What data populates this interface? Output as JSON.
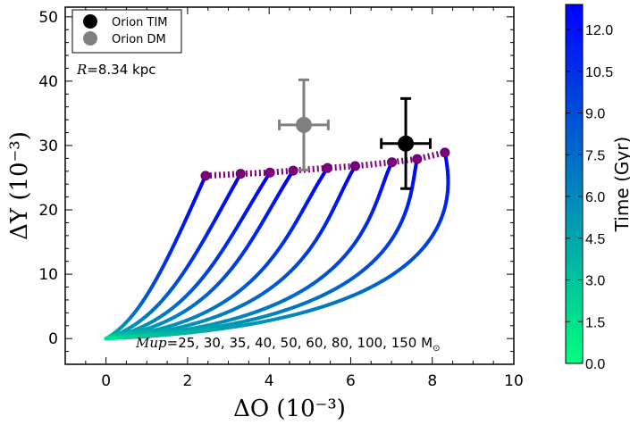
{
  "chart_data": {
    "type": "line",
    "xlabel": "ΔO (10⁻³)",
    "ylabel": "ΔY (10⁻³)",
    "xlim": [
      -1,
      10
    ],
    "ylim": [
      -4,
      51.5
    ],
    "xticks": [
      "0",
      "2",
      "4",
      "6",
      "8",
      "10"
    ],
    "xtick_values": [
      0,
      2,
      4,
      6,
      8,
      10
    ],
    "yticks": [
      "0",
      "10",
      "20",
      "30",
      "40",
      "50"
    ],
    "ytick_values": [
      0,
      10,
      20,
      30,
      40,
      50
    ],
    "grid": false,
    "legend": {
      "placement": "top-left",
      "entries": [
        {
          "label": "Orion TIM",
          "color": "#000000"
        },
        {
          "label": "Orion DM",
          "color": "#808080"
        }
      ]
    },
    "annotations": {
      "radius_prefix": "R",
      "radius_text": "=8.34 kpc",
      "mup_prefix": "Mup",
      "mup_text": "=25, 30, 35, 40, 50, 60, 80, 100, 150 M",
      "mup_unit_symbol": "⊙"
    },
    "tracks": [
      {
        "mup": 25,
        "end": [
          2.44,
          25.3
        ]
      },
      {
        "mup": 30,
        "end": [
          3.3,
          25.6
        ]
      },
      {
        "mup": 35,
        "end": [
          4.02,
          25.8
        ]
      },
      {
        "mup": 40,
        "end": [
          4.59,
          26.1
        ]
      },
      {
        "mup": 50,
        "end": [
          5.43,
          26.5
        ]
      },
      {
        "mup": 60,
        "end": [
          6.11,
          26.8
        ]
      },
      {
        "mup": 80,
        "end": [
          7.01,
          27.4
        ]
      },
      {
        "mup": 100,
        "end": [
          7.63,
          27.9
        ]
      },
      {
        "mup": 150,
        "end": [
          8.31,
          28.9
        ]
      }
    ],
    "endpoint_color": "#800080",
    "observations": [
      {
        "name": "Orion TIM",
        "x": 7.35,
        "y": 30.3,
        "xerr": 0.6,
        "yerr": 7.0,
        "color": "#000000"
      },
      {
        "name": "Orion DM",
        "x": 4.85,
        "y": 33.2,
        "xerr": 0.6,
        "yerr": 7.0,
        "color": "#808080"
      }
    ],
    "colorbar": {
      "label": "Time (Gyr)",
      "range": [
        0,
        12.9
      ],
      "ticks": [
        "0.0",
        "1.5",
        "3.0",
        "4.5",
        "6.0",
        "7.5",
        "9.0",
        "10.5",
        "12.0"
      ],
      "tick_values": [
        0,
        1.5,
        3,
        4.5,
        6,
        7.5,
        9,
        10.5,
        12
      ],
      "color_low": "#00ff80",
      "color_high": "#0000ff"
    }
  }
}
